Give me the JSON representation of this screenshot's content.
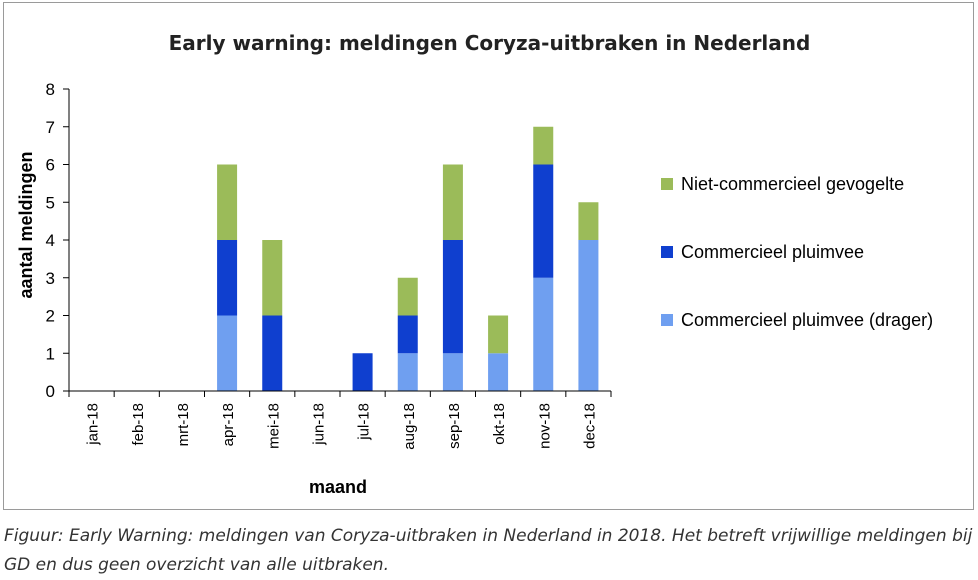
{
  "chart_data": {
    "type": "bar",
    "stacked": true,
    "title": "Early warning: meldingen Coryza-uitbraken in Nederland",
    "xlabel": "maand",
    "ylabel": "aantal meldingen",
    "ylim": [
      0,
      8
    ],
    "yticks": [
      "0",
      "1",
      "2",
      "3",
      "4",
      "5",
      "6",
      "7",
      "8"
    ],
    "categories": [
      "jan-18",
      "feb-18",
      "mrt-18",
      "apr-18",
      "mei-18",
      "jun-18",
      "jul-18",
      "aug-18",
      "sep-18",
      "okt-18",
      "nov-18",
      "dec-18"
    ],
    "series": [
      {
        "name": "Commercieel pluimvee (drager)",
        "color": "#6f9ff0",
        "values": [
          0,
          0,
          0,
          2,
          0,
          0,
          0,
          1,
          1,
          1,
          3,
          4
        ]
      },
      {
        "name": "Commercieel pluimvee",
        "color": "#0f3fcf",
        "values": [
          0,
          0,
          0,
          2,
          2,
          0,
          1,
          1,
          3,
          0,
          3,
          0
        ]
      },
      {
        "name": "Niet-commercieel gevogelte",
        "color": "#9bbb59",
        "values": [
          0,
          0,
          0,
          2,
          2,
          0,
          0,
          1,
          2,
          1,
          1,
          1
        ]
      }
    ],
    "legend_order": [
      "Niet-commercieel gevogelte",
      "Commercieel pluimvee",
      "Commercieel pluimvee (drager)"
    ],
    "legend_position": "right",
    "grid": false
  },
  "caption": "Figuur: Early Warning: meldingen van Coryza-uitbraken in Nederland in 2018. Het betreft vrijwillige meldingen bij GD en dus geen overzicht van alle uitbraken."
}
